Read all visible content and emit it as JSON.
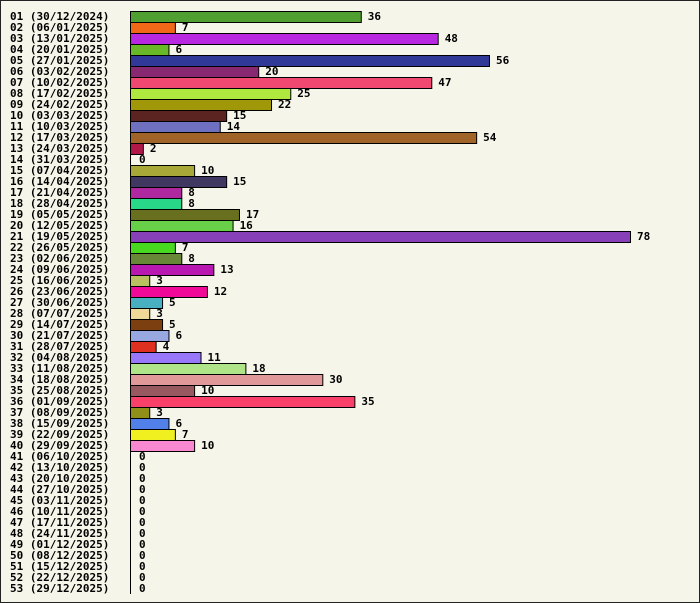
{
  "chart_data": {
    "type": "bar",
    "orientation": "horizontal",
    "title": "",
    "xlabel": "",
    "ylabel": "",
    "xlim": [
      0,
      78
    ],
    "grid": false,
    "categories": [
      "01 (30/12/2024)",
      "02 (06/01/2025)",
      "03 (13/01/2025)",
      "04 (20/01/2025)",
      "05 (27/01/2025)",
      "06 (03/02/2025)",
      "07 (10/02/2025)",
      "08 (17/02/2025)",
      "09 (24/02/2025)",
      "10 (03/03/2025)",
      "11 (10/03/2025)",
      "12 (17/03/2025)",
      "13 (24/03/2025)",
      "14 (31/03/2025)",
      "15 (07/04/2025)",
      "16 (14/04/2025)",
      "17 (21/04/2025)",
      "18 (28/04/2025)",
      "19 (05/05/2025)",
      "20 (12/05/2025)",
      "21 (19/05/2025)",
      "22 (26/05/2025)",
      "23 (02/06/2025)",
      "24 (09/06/2025)",
      "25 (16/06/2025)",
      "26 (23/06/2025)",
      "27 (30/06/2025)",
      "28 (07/07/2025)",
      "29 (14/07/2025)",
      "30 (21/07/2025)",
      "31 (28/07/2025)",
      "32 (04/08/2025)",
      "33 (11/08/2025)",
      "34 (18/08/2025)",
      "35 (25/08/2025)",
      "36 (01/09/2025)",
      "37 (08/09/2025)",
      "38 (15/09/2025)",
      "39 (22/09/2025)",
      "40 (29/09/2025)",
      "41 (06/10/2025)",
      "42 (13/10/2025)",
      "43 (20/10/2025)",
      "44 (27/10/2025)",
      "45 (03/11/2025)",
      "46 (10/11/2025)",
      "47 (17/11/2025)",
      "48 (24/11/2025)",
      "49 (01/12/2025)",
      "50 (08/12/2025)",
      "51 (15/12/2025)",
      "52 (22/12/2025)",
      "53 (29/12/2025)"
    ],
    "values": [
      36,
      7,
      48,
      6,
      56,
      20,
      47,
      25,
      22,
      15,
      14,
      54,
      2,
      0,
      10,
      15,
      8,
      8,
      17,
      16,
      78,
      7,
      8,
      13,
      3,
      12,
      5,
      3,
      5,
      6,
      4,
      11,
      18,
      30,
      10,
      35,
      3,
      6,
      7,
      10,
      0,
      0,
      0,
      0,
      0,
      0,
      0,
      0,
      0,
      0,
      0,
      0,
      0
    ],
    "colors": [
      "#4fa030",
      "#f06818",
      "#b828e0",
      "#68b828",
      "#303898",
      "#882870",
      "#f04870",
      "#b0e840",
      "#a09808",
      "#5c2420",
      "#7070c0",
      "#a06428",
      "#b01848",
      "#ffffff",
      "#a8a838",
      "#403860",
      "#b028a0",
      "#28d888",
      "#687020",
      "#68d048",
      "#8840b8",
      "#48d820",
      "#688838",
      "#b818b0",
      "#b8c060",
      "#f00898",
      "#48b0c0",
      "#f0d898",
      "#7c4010",
      "#98a8e0",
      "#e03020",
      "#9878f8",
      "#b0e488",
      "#e09898",
      "#985860",
      "#f84068",
      "#909018",
      "#5080e8",
      "#f0f020",
      "#f888d0",
      "#ffffff",
      "#ffffff",
      "#ffffff",
      "#ffffff",
      "#ffffff",
      "#ffffff",
      "#ffffff",
      "#ffffff",
      "#ffffff",
      "#ffffff",
      "#ffffff",
      "#ffffff",
      "#ffffff"
    ]
  }
}
